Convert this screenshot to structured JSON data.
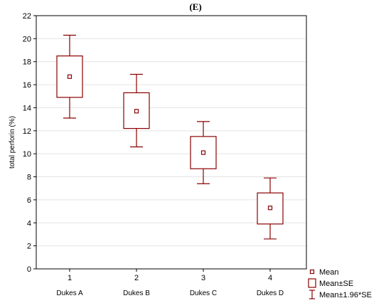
{
  "chart_data": {
    "type": "boxplot",
    "title": "(E)",
    "ylabel": "total perforin (%)",
    "ylim": [
      0,
      22
    ],
    "yticks": [
      0,
      2,
      4,
      6,
      8,
      10,
      12,
      14,
      16,
      18,
      20,
      22
    ],
    "grid": true,
    "categories": [
      "1",
      "2",
      "3",
      "4"
    ],
    "category_labels": [
      "Dukes A",
      "Dukes B",
      "Dukes C",
      "Dukes D"
    ],
    "color": "#8b0000",
    "boxes": [
      {
        "category": "1",
        "mean": 16.7,
        "se_low": 14.9,
        "se_high": 18.5,
        "ci_low": 13.1,
        "ci_high": 20.3
      },
      {
        "category": "2",
        "mean": 13.7,
        "se_low": 12.2,
        "se_high": 15.3,
        "ci_low": 10.6,
        "ci_high": 16.9
      },
      {
        "category": "3",
        "mean": 10.1,
        "se_low": 8.7,
        "se_high": 11.5,
        "ci_low": 7.4,
        "ci_high": 12.8
      },
      {
        "category": "4",
        "mean": 5.3,
        "se_low": 3.9,
        "se_high": 6.6,
        "ci_low": 2.6,
        "ci_high": 7.9
      }
    ],
    "legend": {
      "position": "bottom-right",
      "items": [
        {
          "symbol": "mean",
          "label": "Mean"
        },
        {
          "symbol": "box",
          "label": "Mean±SE"
        },
        {
          "symbol": "whisker",
          "label": "Mean±1.96*SE"
        }
      ]
    }
  }
}
